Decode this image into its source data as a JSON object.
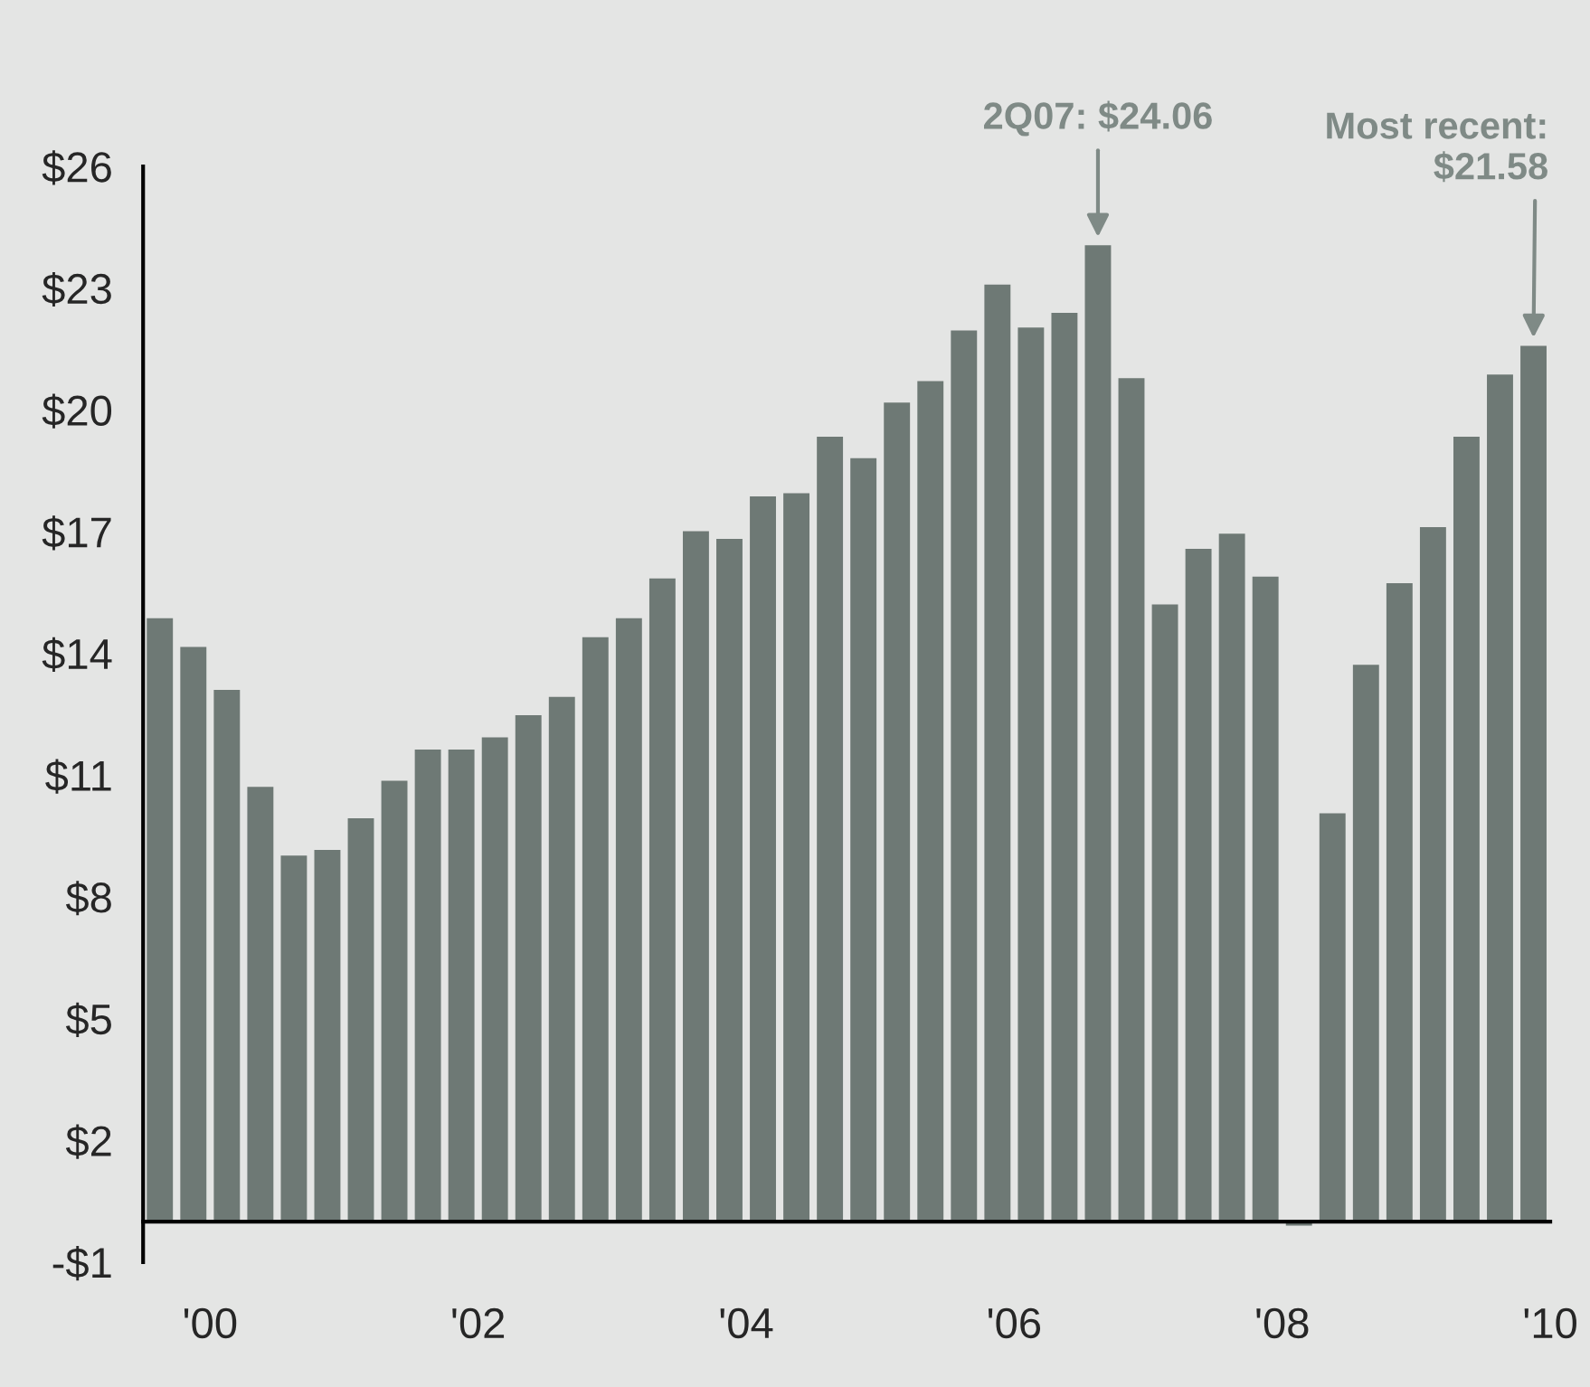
{
  "chart_data": {
    "type": "bar",
    "x": [
      1999.625,
      1999.875,
      2000.125,
      2000.375,
      2000.625,
      2000.875,
      2001.125,
      2001.375,
      2001.625,
      2001.875,
      2002.125,
      2002.375,
      2002.625,
      2002.875,
      2003.125,
      2003.375,
      2003.625,
      2003.875,
      2004.125,
      2004.375,
      2004.625,
      2004.875,
      2005.125,
      2005.375,
      2005.625,
      2005.875,
      2006.125,
      2006.375,
      2006.625,
      2006.875,
      2007.125,
      2007.375,
      2007.625,
      2007.875,
      2008.125,
      2008.375,
      2008.625,
      2008.875,
      2009.125,
      2009.375,
      2009.625,
      2009.875
    ],
    "values": [
      14.87,
      14.16,
      13.1,
      10.71,
      9.02,
      9.16,
      9.94,
      10.86,
      11.63,
      11.63,
      11.93,
      12.48,
      12.93,
      14.4,
      14.87,
      15.85,
      17.01,
      16.82,
      17.87,
      17.95,
      19.34,
      18.81,
      20.18,
      20.71,
      21.96,
      23.09,
      22.03,
      22.39,
      24.06,
      20.78,
      15.21,
      16.58,
      16.95,
      15.89,
      -0.1,
      10.06,
      13.72,
      15.73,
      17.11,
      19.34,
      20.87,
      21.58
    ],
    "color": "#6e7975",
    "xlim": [
      1999.5,
      2010
    ],
    "xticks": [
      {
        "value": 2000,
        "label": "'00"
      },
      {
        "value": 2002,
        "label": "'02"
      },
      {
        "value": 2004,
        "label": "'04"
      },
      {
        "value": 2006,
        "label": "'06"
      },
      {
        "value": 2008,
        "label": "'08"
      },
      {
        "value": 2010,
        "label": "'10"
      }
    ],
    "ylim": [
      -1,
      26
    ],
    "yticks": [
      {
        "value": -1,
        "label": "-$1"
      },
      {
        "value": 2,
        "label": "$2"
      },
      {
        "value": 5,
        "label": "$5"
      },
      {
        "value": 8,
        "label": "$8"
      },
      {
        "value": 11,
        "label": "$11"
      },
      {
        "value": 14,
        "label": "$14"
      },
      {
        "value": 17,
        "label": "$17"
      },
      {
        "value": 20,
        "label": "$20"
      },
      {
        "value": 23,
        "label": "$23"
      },
      {
        "value": 26,
        "label": "$26"
      }
    ],
    "grid": false,
    "annotations": [
      {
        "text": "2Q07: $24.06",
        "x": 2006.625,
        "y": 24.06
      },
      {
        "text": "Most recent:\n$21.58",
        "x": 2009.875,
        "y": 21.58
      }
    ]
  }
}
